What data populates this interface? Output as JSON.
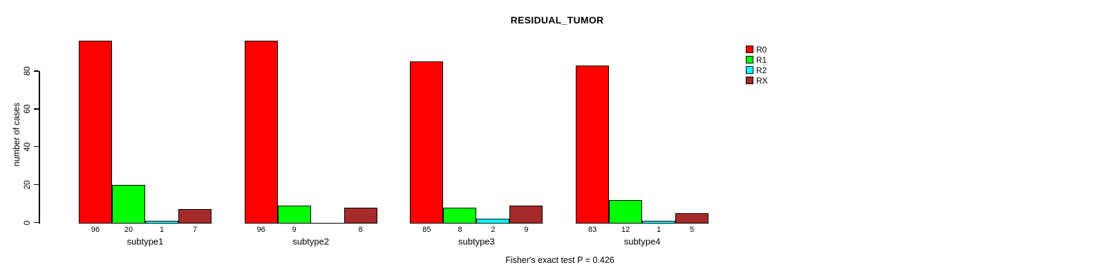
{
  "chart_data": {
    "type": "bar",
    "title": "RESIDUAL_TUMOR",
    "ylabel": "number of cases",
    "xlabel": "",
    "categories": [
      "subtype1",
      "subtype2",
      "subtype3",
      "subtype4"
    ],
    "series": [
      {
        "name": "R0",
        "color": "#ff0000",
        "values": [
          96,
          96,
          85,
          83
        ]
      },
      {
        "name": "R1",
        "color": "#00ff00",
        "values": [
          20,
          9,
          8,
          12
        ]
      },
      {
        "name": "R2",
        "color": "#00ffff",
        "values": [
          1,
          0,
          2,
          1
        ]
      },
      {
        "name": "RX",
        "color": "#a52a2a",
        "values": [
          7,
          8,
          9,
          5
        ]
      }
    ],
    "value_labels": [
      [
        "96",
        "20",
        "1",
        "7"
      ],
      [
        "96",
        "9",
        "",
        "8"
      ],
      [
        "85",
        "8",
        "2",
        "9"
      ],
      [
        "83",
        "12",
        "1",
        "5"
      ]
    ],
    "y_ticks": [
      0,
      20,
      40,
      60,
      80
    ],
    "ylim": [
      0,
      97
    ],
    "grid": false,
    "legend_position": "top-right",
    "annotation": "Fisher's exact test P = 0.426",
    "text_color": "#000000",
    "background_color": "#ffffff"
  }
}
